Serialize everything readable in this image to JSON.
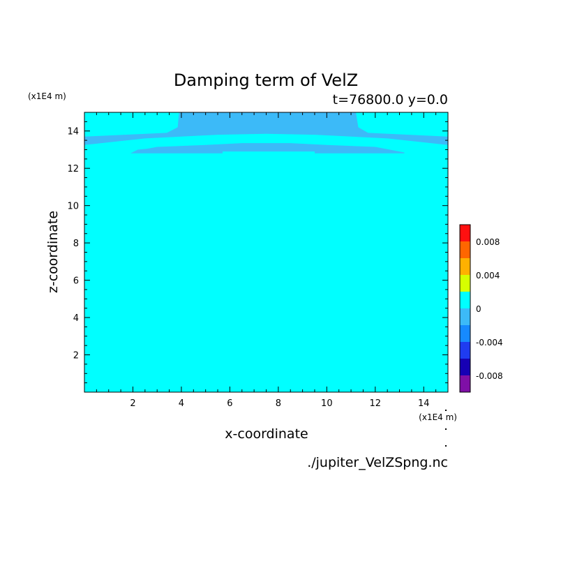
{
  "chart_data": {
    "type": "heatmap",
    "title": "Damping term of VelZ",
    "subtitle": "t=76800.0 y=0.0",
    "xlabel": "x-coordinate",
    "ylabel": "z-coordinate",
    "x_scale_label": "(x1E4 m)",
    "y_scale_label": "(x1E4 m)",
    "source_file": "./jupiter_VelZSpng.nc",
    "xlim": [
      0,
      15
    ],
    "ylim": [
      0,
      15
    ],
    "xticks": [
      2,
      4,
      6,
      8,
      10,
      12,
      14
    ],
    "yticks": [
      2,
      4,
      6,
      8,
      10,
      12,
      14
    ],
    "background_value": 0,
    "regions": [
      {
        "value": -0.001,
        "points": [
          [
            0,
            13.25
          ],
          [
            0,
            13.7
          ],
          [
            3.4,
            13.9
          ],
          [
            3.85,
            14.2
          ],
          [
            3.9,
            15
          ],
          [
            11.2,
            15
          ],
          [
            11.3,
            14.2
          ],
          [
            11.7,
            13.9
          ],
          [
            15,
            13.7
          ],
          [
            15,
            13.25
          ],
          [
            12.5,
            13.6
          ],
          [
            9.5,
            13.8
          ],
          [
            7.5,
            13.85
          ],
          [
            5.5,
            13.8
          ],
          [
            2.5,
            13.6
          ]
        ]
      },
      {
        "value": -0.001,
        "points": [
          [
            1.9,
            12.8
          ],
          [
            2.2,
            13.0
          ],
          [
            2.6,
            13.05
          ],
          [
            3.0,
            13.15
          ],
          [
            5.0,
            13.25
          ],
          [
            6.5,
            13.35
          ],
          [
            8.5,
            13.35
          ],
          [
            10.0,
            13.25
          ],
          [
            12.0,
            13.15
          ],
          [
            13.2,
            12.85
          ],
          [
            13.2,
            12.8
          ],
          [
            9.5,
            12.8
          ],
          [
            9.5,
            12.9
          ],
          [
            5.7,
            12.9
          ],
          [
            5.7,
            12.8
          ]
        ]
      }
    ],
    "colorbar": {
      "tick_labels": [
        "0.008",
        "0.004",
        "0",
        "-0.004",
        "-0.008"
      ],
      "tick_values": [
        0.008,
        0.004,
        0,
        -0.004,
        -0.008
      ],
      "levels": [
        -0.01,
        -0.008,
        -0.006,
        -0.004,
        -0.002,
        0,
        0.002,
        0.004,
        0.006,
        0.008,
        0.01
      ],
      "colors": [
        "#7f0fa6",
        "#1600b4",
        "#1f3cf0",
        "#168aff",
        "#3cbaf8",
        "#00ffff",
        "#d6ff00",
        "#ffb100",
        "#ff6600",
        "#ff1010",
        "#ffb0b0"
      ]
    }
  }
}
